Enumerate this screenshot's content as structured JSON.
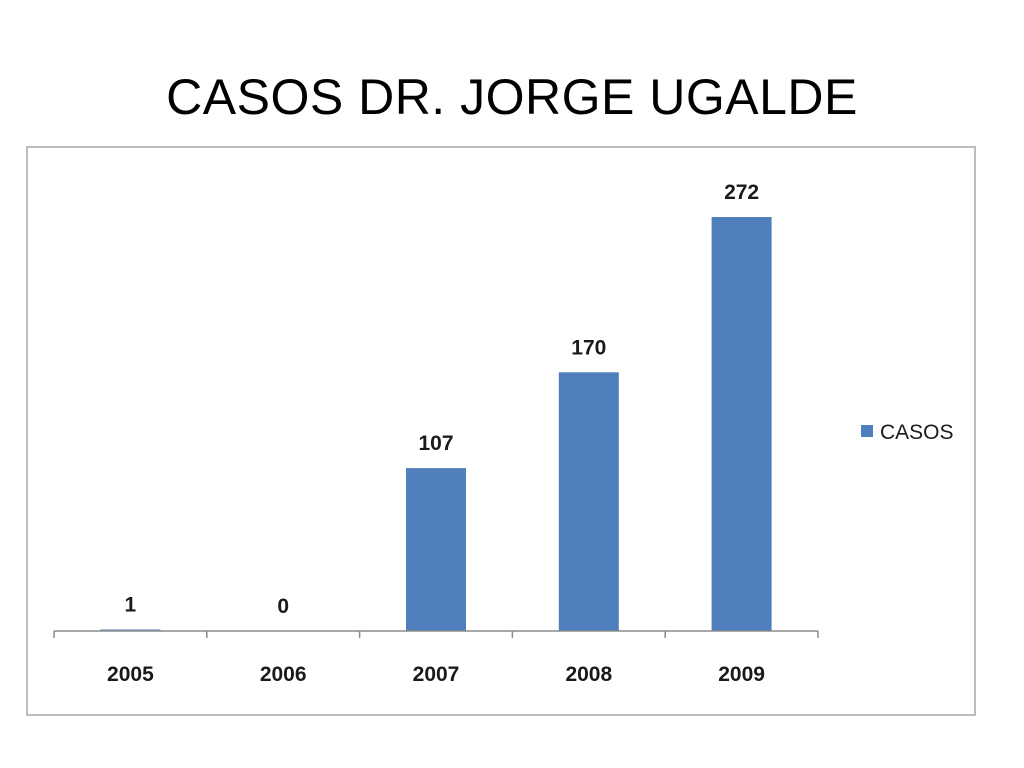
{
  "slide": {
    "title": "CASOS DR. JORGE UGALDE"
  },
  "chart_data": {
    "type": "bar",
    "title": "",
    "categories": [
      "2005",
      "2006",
      "2007",
      "2008",
      "2009"
    ],
    "series": [
      {
        "name": "CASOS",
        "values": [
          1,
          0,
          107,
          170,
          272
        ],
        "color": "#4f7fbc"
      }
    ],
    "data_labels": [
      "1",
      "0",
      "107",
      "170",
      "272"
    ],
    "ylim": [
      0,
      272
    ],
    "grid": false,
    "y_axis_visible": false,
    "legend_position": "right"
  }
}
